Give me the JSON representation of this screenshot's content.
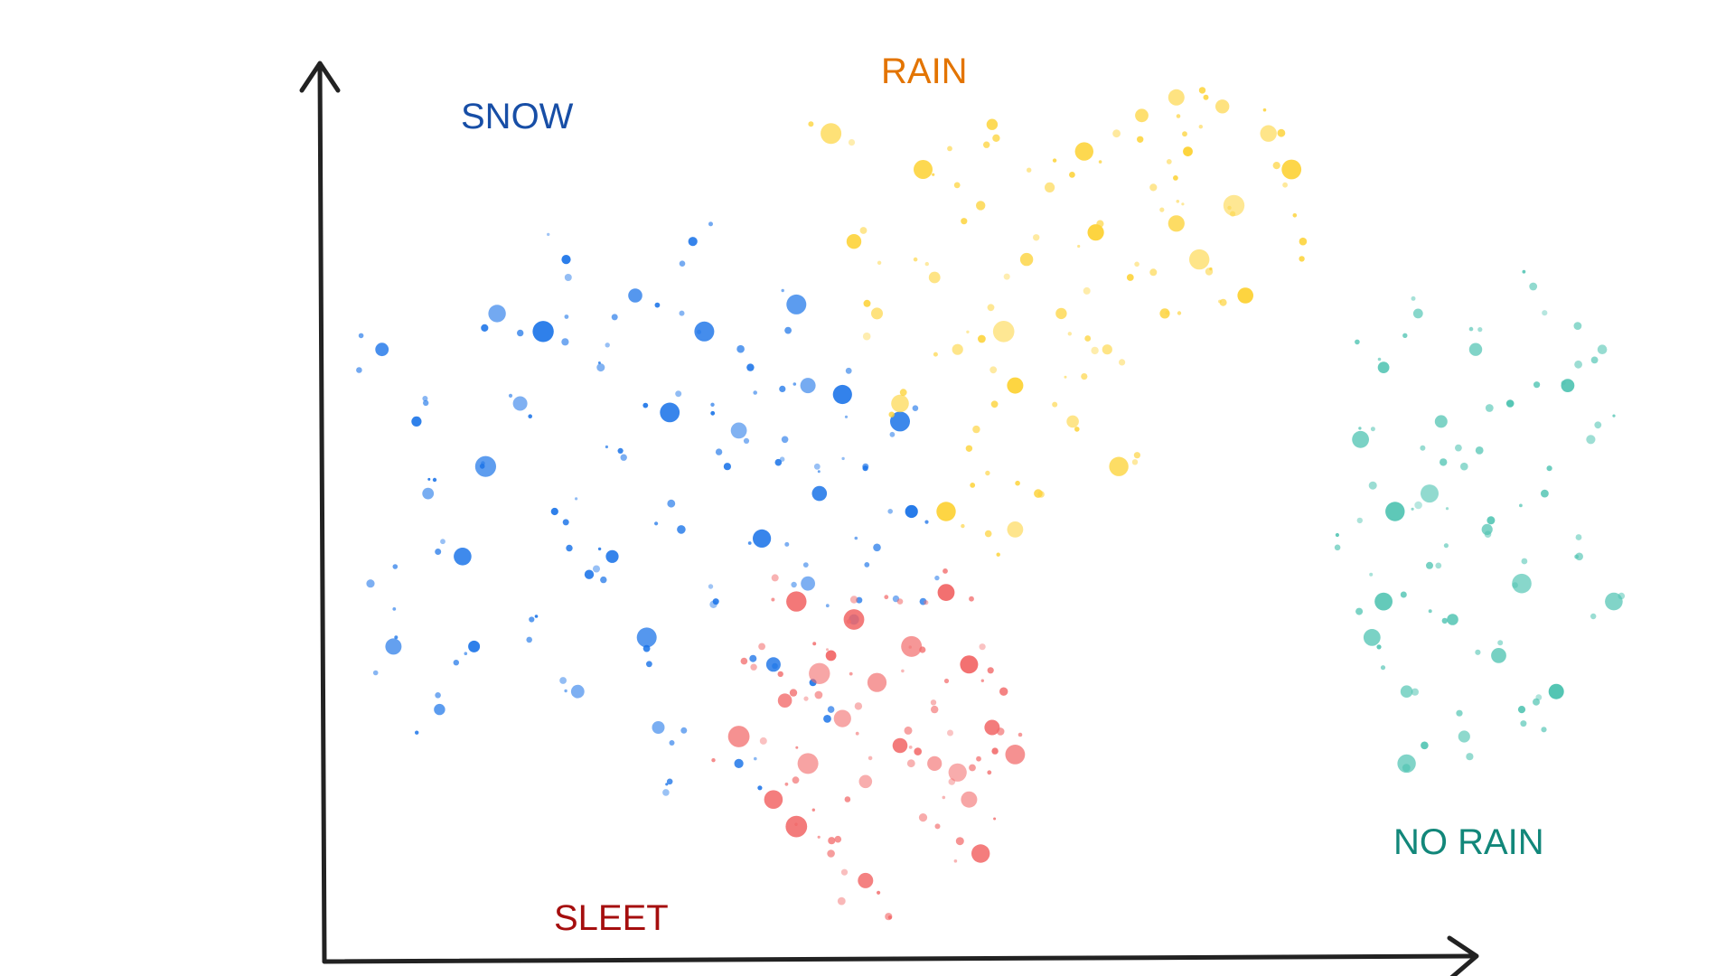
{
  "chart_data": {
    "type": "scatter",
    "title": "",
    "xlabel": "",
    "ylabel": "",
    "xlim": [
      0,
      120
    ],
    "ylim": [
      0,
      100
    ],
    "grid": false,
    "axes": "arrows-only, no ticks",
    "series": [
      {
        "name": "SNOW",
        "color": "#1a73e8",
        "label_color": "#174ea6",
        "points": [
          [
            5,
            68
          ],
          [
            8,
            60
          ],
          [
            4,
            42
          ],
          [
            6,
            35
          ],
          [
            10,
            28
          ],
          [
            12,
            45
          ],
          [
            14,
            55
          ],
          [
            15,
            72
          ],
          [
            17,
            62
          ],
          [
            18,
            38
          ],
          [
            20,
            50
          ],
          [
            21,
            78
          ],
          [
            22,
            30
          ],
          [
            24,
            66
          ],
          [
            25,
            45
          ],
          [
            26,
            56
          ],
          [
            27,
            74
          ],
          [
            28,
            36
          ],
          [
            29,
            26
          ],
          [
            30,
            61
          ],
          [
            31,
            48
          ],
          [
            32,
            80
          ],
          [
            33,
            70
          ],
          [
            34,
            40
          ],
          [
            35,
            55
          ],
          [
            36,
            22
          ],
          [
            37,
            66
          ],
          [
            38,
            47
          ],
          [
            39,
            33
          ],
          [
            40,
            58
          ],
          [
            41,
            73
          ],
          [
            42,
            42
          ],
          [
            43,
            52
          ],
          [
            44,
            28
          ],
          [
            45,
            63
          ],
          [
            46,
            38
          ],
          [
            47,
            55
          ],
          [
            48,
            46
          ],
          [
            50,
            60
          ],
          [
            51,
            50
          ],
          [
            52,
            40
          ],
          [
            30,
            20
          ],
          [
            19,
            70
          ],
          [
            13,
            35
          ],
          [
            9,
            52
          ],
          [
            23,
            43
          ],
          [
            36,
            59
          ],
          [
            42,
            64
          ]
        ]
      },
      {
        "name": "RAIN",
        "color": "#fdd33a",
        "label_color": "#e37400",
        "points": [
          [
            44,
            92
          ],
          [
            46,
            80
          ],
          [
            48,
            72
          ],
          [
            50,
            62
          ],
          [
            52,
            88
          ],
          [
            53,
            76
          ],
          [
            55,
            68
          ],
          [
            56,
            57
          ],
          [
            57,
            84
          ],
          [
            58,
            93
          ],
          [
            59,
            70
          ],
          [
            60,
            64
          ],
          [
            61,
            78
          ],
          [
            62,
            52
          ],
          [
            63,
            86
          ],
          [
            64,
            72
          ],
          [
            65,
            60
          ],
          [
            66,
            90
          ],
          [
            67,
            81
          ],
          [
            68,
            68
          ],
          [
            69,
            55
          ],
          [
            70,
            76
          ],
          [
            71,
            94
          ],
          [
            72,
            86
          ],
          [
            73,
            72
          ],
          [
            74,
            82
          ],
          [
            75,
            90
          ],
          [
            76,
            78
          ],
          [
            78,
            95
          ],
          [
            79,
            84
          ],
          [
            80,
            74
          ],
          [
            82,
            92
          ],
          [
            84,
            88
          ],
          [
            85,
            80
          ],
          [
            54,
            50
          ],
          [
            60,
            48
          ],
          [
            66,
            65
          ],
          [
            74,
            96
          ]
        ]
      },
      {
        "name": "SLEET",
        "color": "#f26b6b",
        "label_color": "#a50e0e",
        "points": [
          [
            36,
            25
          ],
          [
            38,
            35
          ],
          [
            39,
            18
          ],
          [
            40,
            29
          ],
          [
            41,
            40
          ],
          [
            42,
            22
          ],
          [
            43,
            32
          ],
          [
            44,
            12
          ],
          [
            45,
            27
          ],
          [
            46,
            38
          ],
          [
            47,
            20
          ],
          [
            48,
            31
          ],
          [
            49,
            5
          ],
          [
            50,
            24
          ],
          [
            51,
            35
          ],
          [
            52,
            16
          ],
          [
            53,
            28
          ],
          [
            54,
            41
          ],
          [
            55,
            21
          ],
          [
            56,
            33
          ],
          [
            57,
            12
          ],
          [
            58,
            26
          ],
          [
            59,
            30
          ],
          [
            60,
            23
          ],
          [
            44,
            34
          ],
          [
            50,
            40
          ],
          [
            47,
            9
          ],
          [
            53,
            22
          ],
          [
            41,
            15
          ],
          [
            56,
            18
          ]
        ]
      },
      {
        "name": "NO RAIN",
        "color": "#4ec3b1",
        "label_color": "#12877a",
        "points": [
          [
            88,
            46
          ],
          [
            90,
            58
          ],
          [
            91,
            36
          ],
          [
            92,
            66
          ],
          [
            93,
            50
          ],
          [
            94,
            30
          ],
          [
            95,
            72
          ],
          [
            96,
            44
          ],
          [
            97,
            60
          ],
          [
            98,
            38
          ],
          [
            99,
            55
          ],
          [
            100,
            68
          ],
          [
            101,
            48
          ],
          [
            102,
            34
          ],
          [
            103,
            62
          ],
          [
            104,
            42
          ],
          [
            105,
            75
          ],
          [
            106,
            52
          ],
          [
            107,
            30
          ],
          [
            108,
            64
          ],
          [
            109,
            45
          ],
          [
            110,
            58
          ],
          [
            111,
            68
          ],
          [
            94,
            22
          ],
          [
            99,
            25
          ],
          [
            104,
            28
          ],
          [
            92,
            40
          ],
          [
            96,
            52
          ],
          [
            112,
            40
          ]
        ]
      }
    ]
  }
}
